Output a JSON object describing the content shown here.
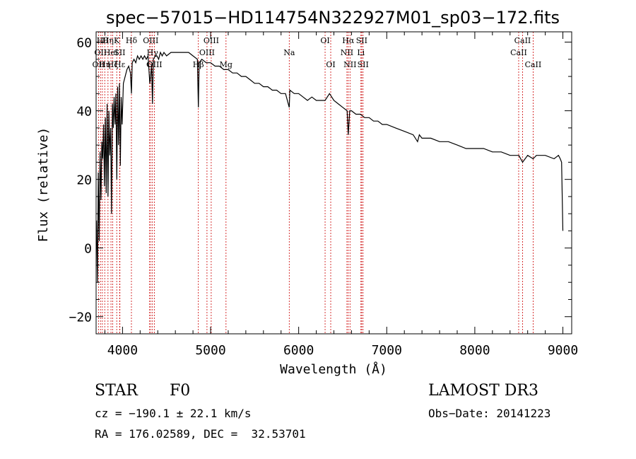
{
  "chart_data": {
    "type": "line",
    "title": "spec−57015−HD114754N322927M01_sp03−172.fits",
    "xlabel": "Wavelength (Å)",
    "ylabel": "Flux (relative)",
    "xlim": [
      3700,
      9100
    ],
    "ylim": [
      -25,
      63
    ],
    "x_ticks": [
      4000,
      5000,
      6000,
      7000,
      8000,
      9000
    ],
    "y_ticks": [
      -20,
      0,
      20,
      40,
      60
    ],
    "y_tick_labels": [
      "−20",
      "0",
      "20",
      "40",
      "60"
    ],
    "grid": false,
    "series": [
      {
        "color": "#000000",
        "x": [
          3705,
          3715,
          3725,
          3735,
          3745,
          3755,
          3765,
          3775,
          3785,
          3795,
          3805,
          3815,
          3825,
          3835,
          3845,
          3855,
          3865,
          3875,
          3885,
          3895,
          3905,
          3915,
          3925,
          3935,
          3945,
          3955,
          3965,
          3975,
          3985,
          3995,
          4010,
          4030,
          4050,
          4070,
          4090,
          4101,
          4110,
          4130,
          4150,
          4170,
          4190,
          4210,
          4230,
          4250,
          4270,
          4290,
          4310,
          4330,
          4340,
          4350,
          4370,
          4390,
          4410,
          4430,
          4450,
          4470,
          4500,
          4550,
          4600,
          4650,
          4700,
          4750,
          4800,
          4850,
          4861,
          4870,
          4900,
          4950,
          5000,
          5050,
          5100,
          5150,
          5200,
          5250,
          5300,
          5350,
          5400,
          5450,
          5500,
          5550,
          5600,
          5650,
          5700,
          5750,
          5800,
          5850,
          5893,
          5900,
          5950,
          6000,
          6050,
          6100,
          6150,
          6200,
          6250,
          6300,
          6350,
          6400,
          6450,
          6500,
          6550,
          6563,
          6580,
          6600,
          6650,
          6700,
          6750,
          6800,
          6850,
          6900,
          6950,
          7000,
          7100,
          7200,
          7300,
          7350,
          7370,
          7400,
          7500,
          7600,
          7700,
          7800,
          7900,
          8000,
          8100,
          8200,
          8300,
          8400,
          8500,
          8542,
          8600,
          8662,
          8700,
          8800,
          8900,
          8950,
          8970,
          8985,
          9000
        ],
        "y": [
          8,
          -10,
          22,
          2,
          28,
          14,
          31,
          26,
          36,
          18,
          38,
          16,
          42,
          15,
          40,
          27,
          35,
          10,
          42,
          35,
          44,
          36,
          45,
          20,
          47,
          30,
          48,
          24,
          44,
          36,
          48,
          50,
          52,
          53,
          51,
          45,
          54,
          55,
          54,
          56,
          55,
          56,
          55,
          56,
          55,
          56,
          48,
          53,
          42,
          55,
          56,
          56,
          55,
          57,
          56,
          57,
          56,
          57,
          57,
          57,
          57,
          57,
          56,
          55,
          41,
          54,
          55,
          54,
          54,
          53,
          53,
          52,
          52,
          51,
          51,
          50,
          50,
          49,
          48,
          48,
          47,
          47,
          46,
          46,
          45,
          45,
          41,
          46,
          45,
          45,
          44,
          43,
          44,
          43,
          43,
          43,
          45,
          43,
          42,
          41,
          40,
          33,
          40,
          40,
          39,
          39,
          38,
          38,
          37,
          37,
          36,
          36,
          35,
          34,
          33,
          31,
          33,
          32,
          32,
          31,
          31,
          30,
          29,
          29,
          29,
          28,
          28,
          27,
          27,
          25,
          27,
          26,
          27,
          27,
          26,
          27,
          26,
          25,
          5
        ]
      }
    ],
    "line_markers": [
      {
        "x": 3727,
        "row": 2,
        "label": "OII"
      },
      {
        "x": 3750,
        "row": 1,
        "label": "OII"
      },
      {
        "x": 3771,
        "row": 0,
        "label": "Hθ"
      },
      {
        "x": 3798,
        "row": 2,
        "label": "Hη"
      },
      {
        "x": 3835,
        "row": 0,
        "label": "Hη"
      },
      {
        "x": 3869,
        "row": 1,
        "label": "HeI"
      },
      {
        "x": 3889,
        "row": 2,
        "label": "Hζ"
      },
      {
        "x": 3934,
        "row": 0,
        "label": "K"
      },
      {
        "x": 3968,
        "row": 1,
        "label": "SII"
      },
      {
        "x": 3970,
        "row": 2,
        "label": "Hε"
      },
      {
        "x": 4101,
        "row": 0,
        "label": "Hδ"
      },
      {
        "x": 4305,
        "row": 2,
        "label": "G"
      },
      {
        "x": 4320,
        "row": 0,
        "label": "OIII"
      },
      {
        "x": 4340,
        "row": 1,
        "label": "Hγ"
      },
      {
        "x": 4363,
        "row": 2,
        "label": "OIII"
      },
      {
        "x": 4861,
        "row": 2,
        "label": "Hβ"
      },
      {
        "x": 4959,
        "row": 1,
        "label": "OIII"
      },
      {
        "x": 5007,
        "row": 0,
        "label": "OIII"
      },
      {
        "x": 5175,
        "row": 2,
        "label": "Mg"
      },
      {
        "x": 5893,
        "row": 1,
        "label": "Na"
      },
      {
        "x": 6300,
        "row": 0,
        "label": "OI"
      },
      {
        "x": 6364,
        "row": 2,
        "label": "OI"
      },
      {
        "x": 6548,
        "row": 1,
        "label": "NII"
      },
      {
        "x": 6563,
        "row": 0,
        "label": "Hα"
      },
      {
        "x": 6583,
        "row": 2,
        "label": "NII"
      },
      {
        "x": 6707,
        "row": 1,
        "label": "Li"
      },
      {
        "x": 6716,
        "row": 0,
        "label": "SII"
      },
      {
        "x": 6731,
        "row": 2,
        "label": "SII"
      },
      {
        "x": 8498,
        "row": 1,
        "label": "CaII"
      },
      {
        "x": 8542,
        "row": 0,
        "label": "CaII"
      },
      {
        "x": 8662,
        "row": 2,
        "label": "CaII"
      }
    ],
    "marker_color": "#cc0000"
  },
  "info": {
    "object_class": "STAR",
    "subclass": "F0",
    "survey": "LAMOST DR3",
    "cz": "cz = −190.1 ± 22.1 km/s",
    "obs_date": "Obs−Date: 20141223",
    "coords": "RA = 176.02589, DEC =  32.53701"
  }
}
